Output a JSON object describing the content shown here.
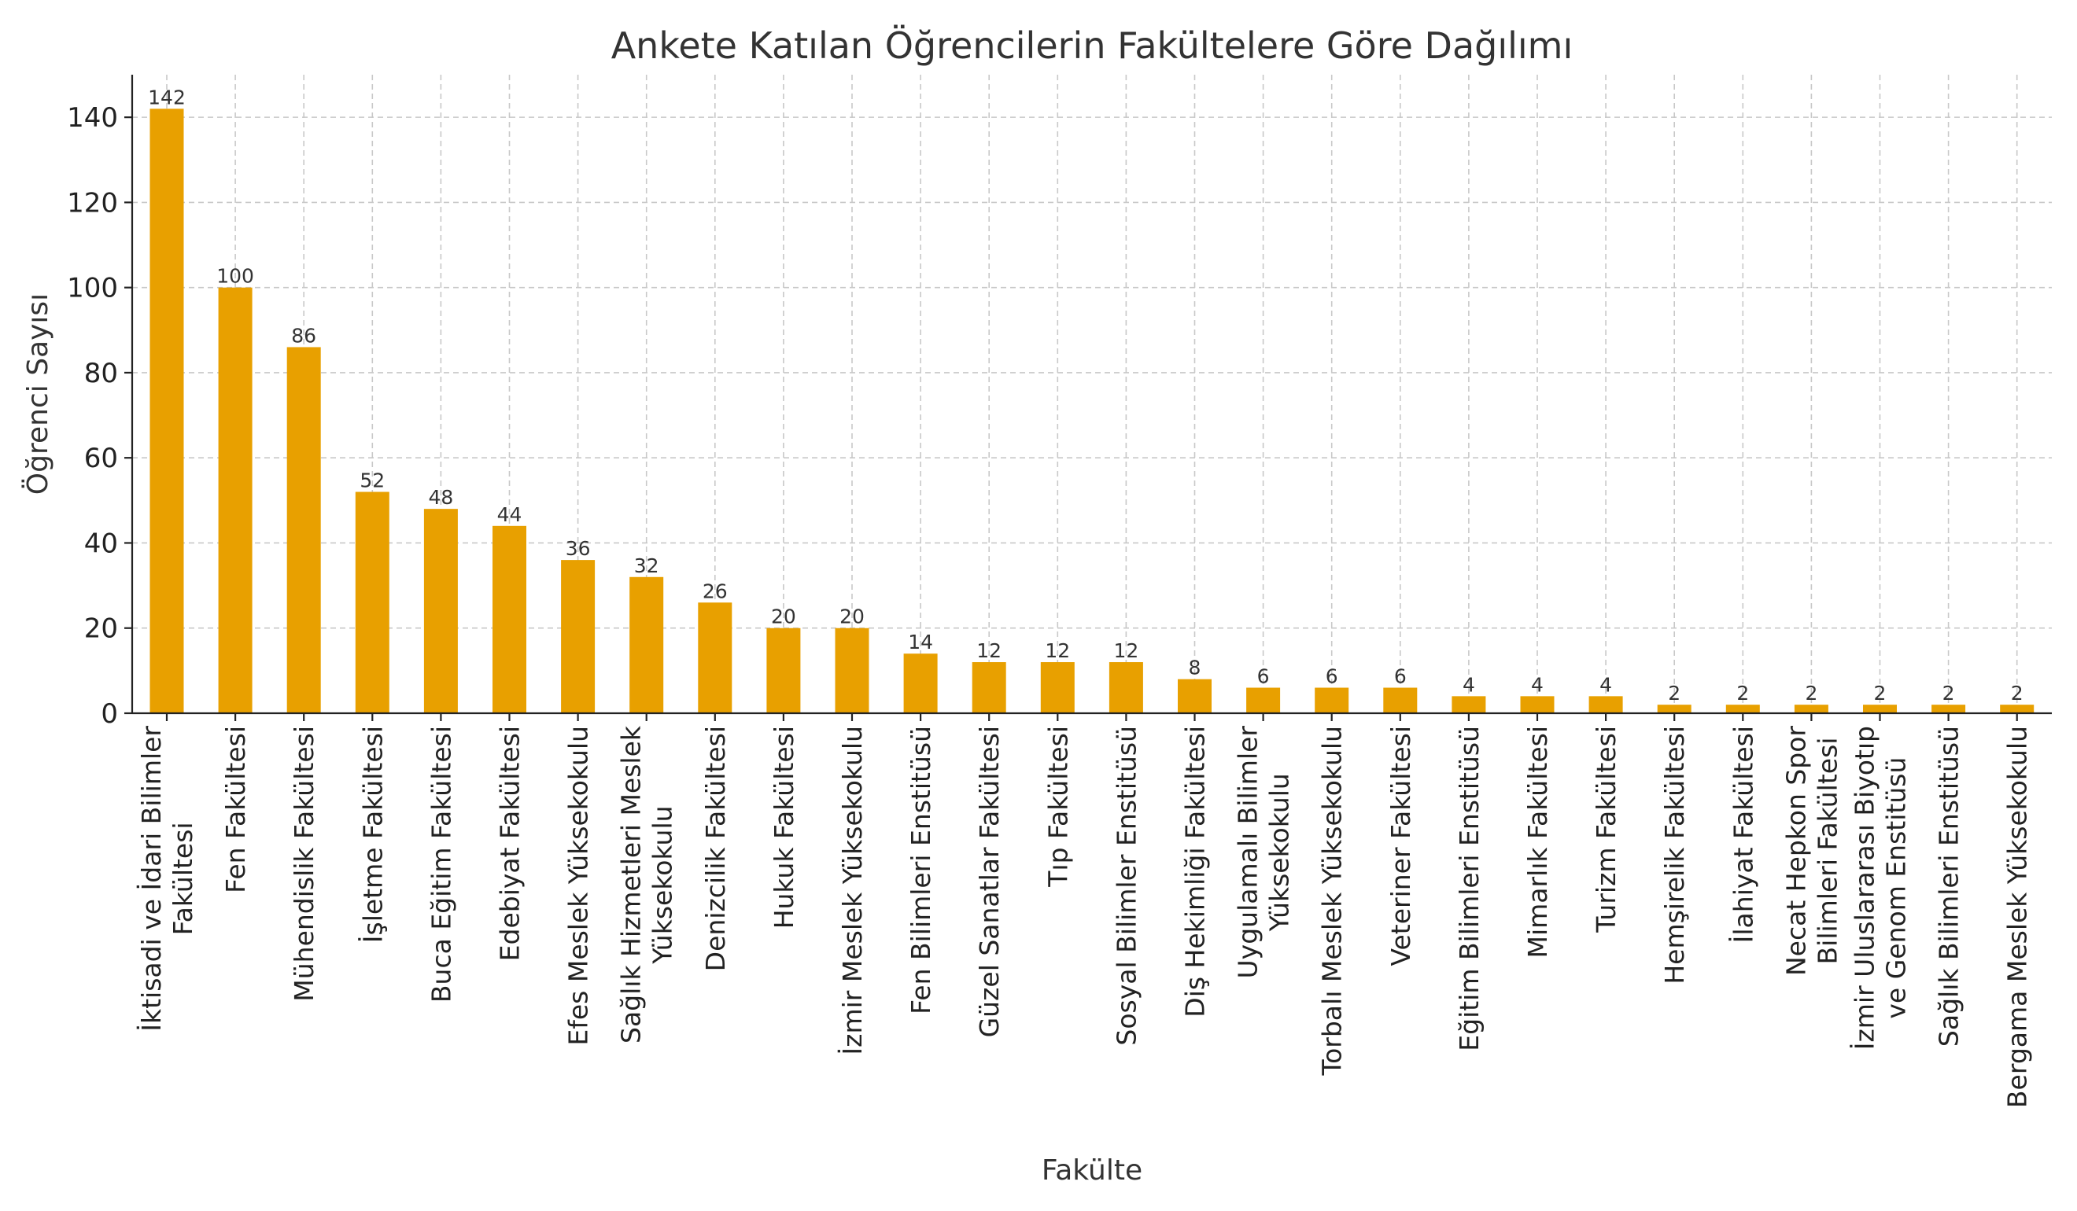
{
  "chart_data": {
    "type": "bar",
    "title": "Ankete Katılan Öğrencilerin Fakültelere Göre Dağılımı",
    "xlabel": "Fakülte",
    "ylabel": "Öğrenci Sayısı",
    "ylim": [
      0,
      150
    ],
    "yticks": [
      0,
      20,
      40,
      60,
      80,
      100,
      120,
      140
    ],
    "grid": true,
    "bar_color": "#E8A000",
    "categories": [
      "İktisadi ve İdari Bilimler\nFakültesi",
      "Fen Fakültesi",
      "Mühendislik Fakültesi",
      "İşletme Fakültesi",
      "Buca Eğitim Fakültesi",
      "Edebiyat Fakültesi",
      "Efes Meslek Yüksekokulu",
      "Sağlık Hizmetleri Meslek\nYüksekokulu",
      "Denizcilik Fakültesi",
      "Hukuk Fakültesi",
      "İzmir Meslek Yüksekokulu",
      "Fen Bilimleri Enstitüsü",
      "Güzel Sanatlar Fakültesi",
      "Tıp Fakültesi",
      "Sosyal Bilimler Enstitüsü",
      "Diş Hekimliği Fakültesi",
      "Uygulamalı Bilimler\nYüksekokulu",
      "Torbalı Meslek Yüksekokulu",
      "Veteriner Fakültesi",
      "Eğitim Bilimleri Enstitüsü",
      "Mimarlık Fakültesi",
      "Turizm Fakültesi",
      "Hemşirelik Fakültesi",
      "İlahiyat Fakültesi",
      "Necat Hepkon Spor\nBilimleri Fakültesi",
      "İzmir Uluslararası Biyotıp\nve Genom Enstitüsü",
      "Sağlık Bilimleri Enstitüsü",
      "Bergama Meslek Yüksekokulu"
    ],
    "values": [
      142,
      100,
      86,
      52,
      48,
      44,
      36,
      32,
      26,
      20,
      20,
      14,
      12,
      12,
      12,
      8,
      6,
      6,
      6,
      4,
      4,
      4,
      2,
      2,
      2,
      2,
      2,
      2
    ]
  }
}
